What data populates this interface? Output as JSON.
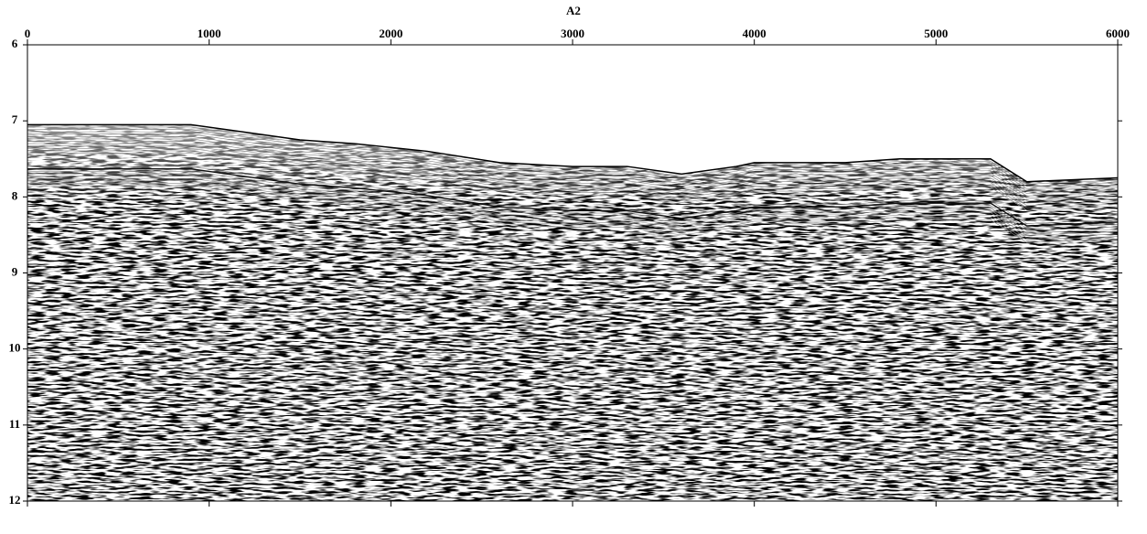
{
  "chart_data": {
    "type": "line",
    "title": "A2",
    "x": [
      0,
      500,
      900,
      1200,
      1500,
      1800,
      2200,
      2600,
      3000,
      3300,
      3600,
      3900,
      4000,
      4500,
      4800,
      5200,
      5300,
      5500,
      6000
    ],
    "values": [
      7.05,
      7.05,
      7.05,
      7.15,
      7.25,
      7.3,
      7.4,
      7.55,
      7.6,
      7.6,
      7.7,
      7.6,
      7.55,
      7.55,
      7.5,
      7.5,
      7.5,
      7.8,
      7.75
    ],
    "color": "#000000",
    "xlim": [
      0,
      6000
    ],
    "xticks": [
      0,
      1000,
      2000,
      3000,
      4000,
      5000,
      6000
    ],
    "ylim": [
      6,
      12
    ],
    "yticks": [
      6,
      7,
      8,
      9,
      10,
      11,
      12
    ],
    "y_inverted": true
  }
}
